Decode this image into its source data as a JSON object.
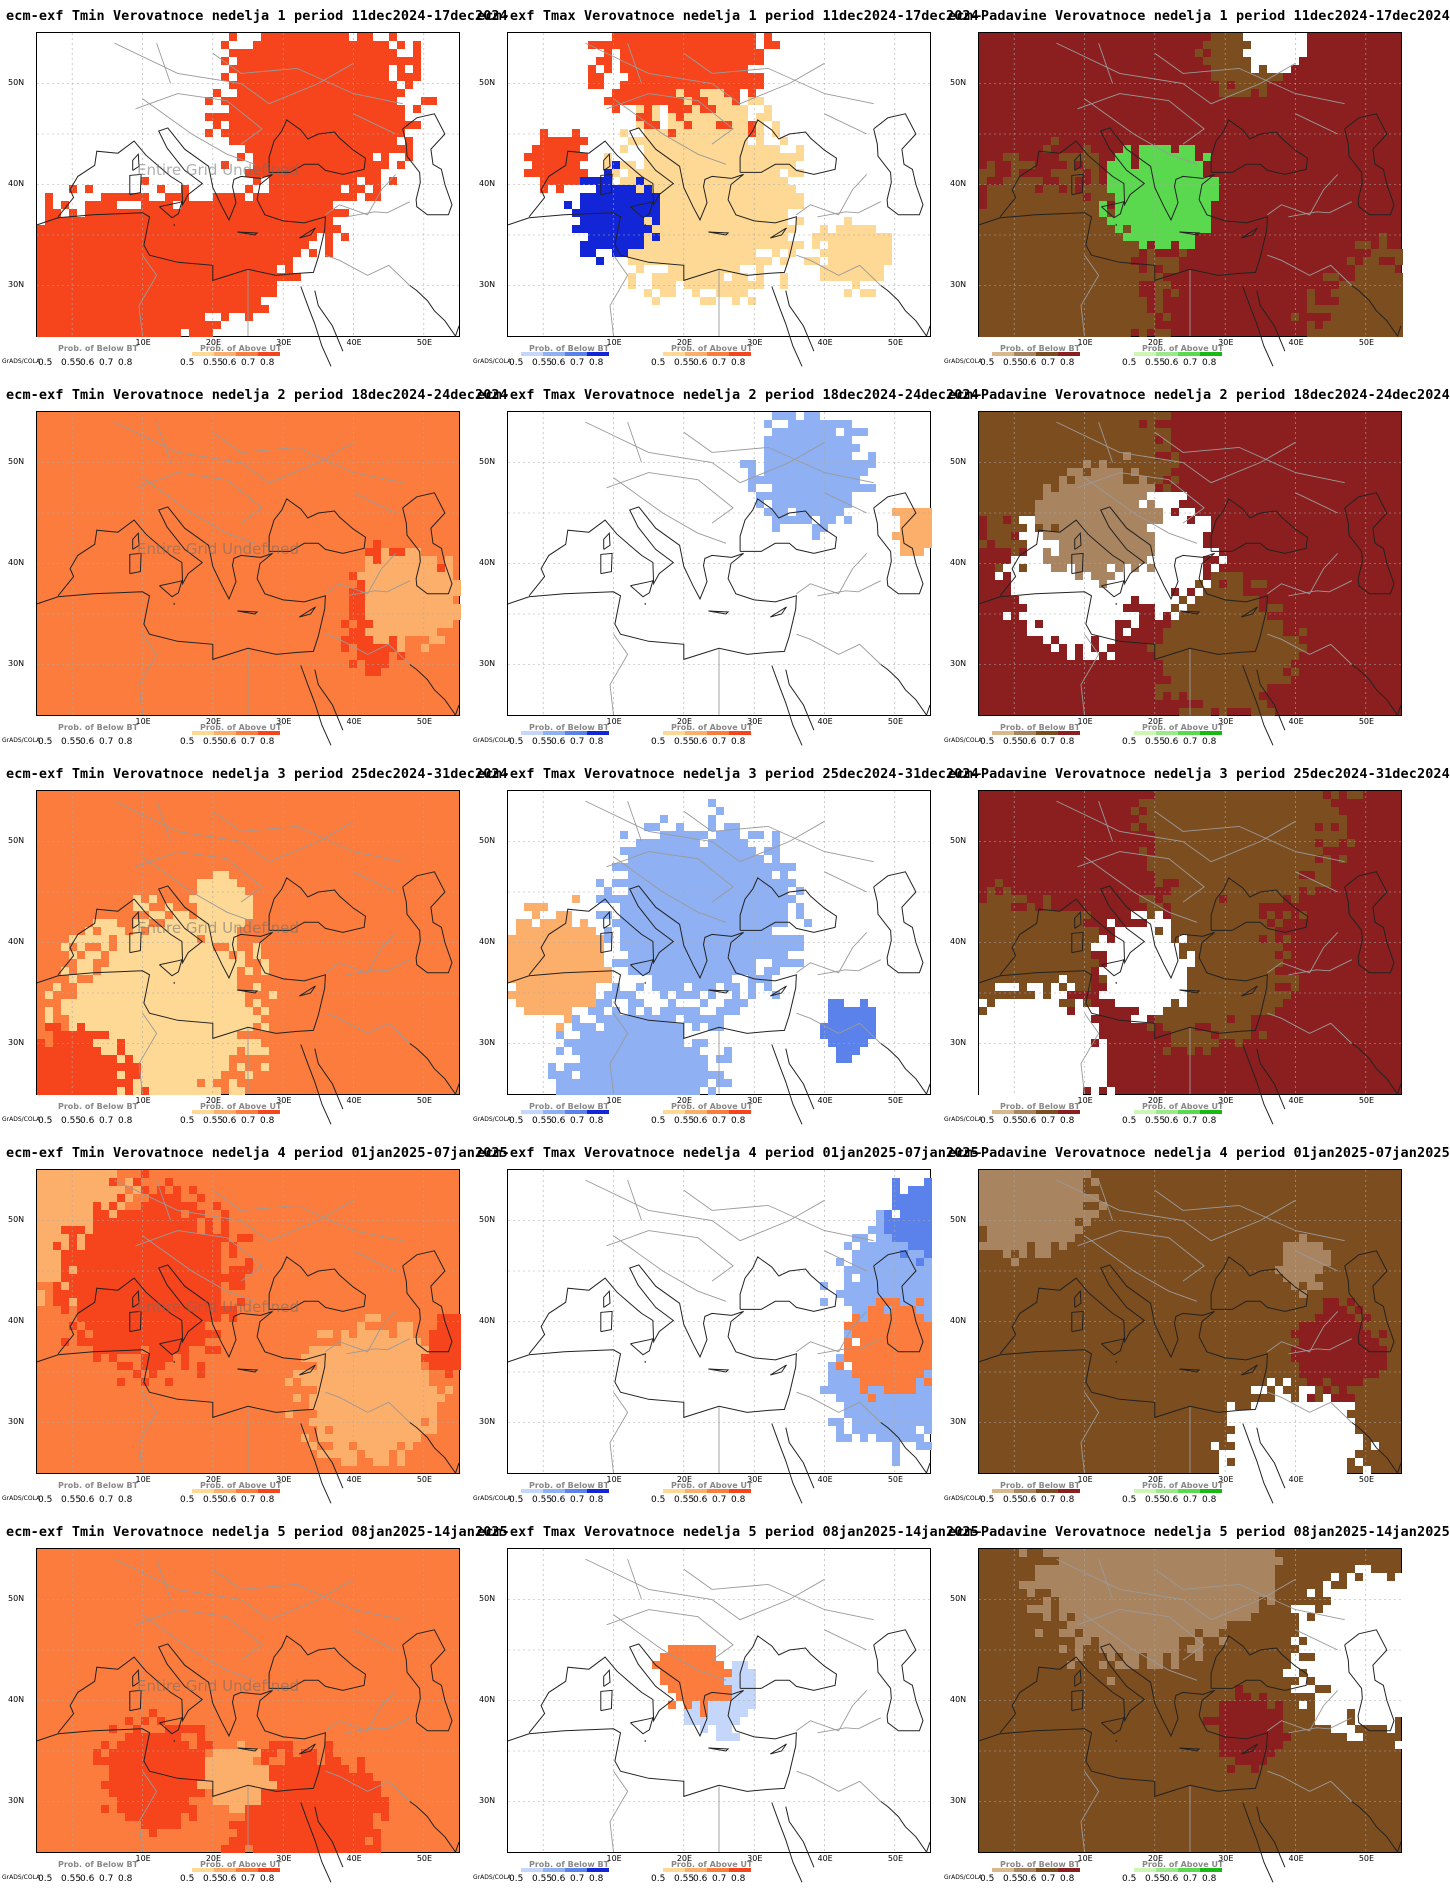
{
  "legends": {
    "tmin": {
      "below": {
        "title": "Prob. of Below BT",
        "colors": [
          "#ffffff",
          "#ffffff",
          "#ffffff",
          "#ffffff"
        ]
      },
      "above": {
        "title": "Prob. of Above UT",
        "colors": [
          "#fdd995",
          "#fcae6b",
          "#fb7c3c",
          "#f6441c"
        ]
      }
    },
    "tmax": {
      "below": {
        "title": "Prob. of Below BT",
        "colors": [
          "#c4d6fa",
          "#8fb0f2",
          "#5a82ea",
          "#1226d8"
        ]
      },
      "above": {
        "title": "Prob. of Above UT",
        "colors": [
          "#fdd995",
          "#fcae6b",
          "#fb7c3c",
          "#f6441c"
        ]
      }
    },
    "padavine": {
      "below": {
        "title": "Prob. of Below BT",
        "colors": [
          "#d7b98d",
          "#a98460",
          "#7c4d1f",
          "#8b1f1f"
        ]
      },
      "above": {
        "title": "Prob. of Above UT",
        "colors": [
          "#cdf5b6",
          "#9be88a",
          "#5ad84e",
          "#19b913"
        ]
      }
    },
    "ticks": [
      "0.5",
      "0.55",
      "0.6",
      "0.7",
      "0.8"
    ]
  },
  "grads_label": "GrADS/COLA",
  "undefined_text": "Entire Grid Undefined",
  "lat_labels": [
    "50N",
    "40N",
    "30N"
  ],
  "lon_labels": [
    "10E",
    "20E",
    "30E",
    "40E",
    "50E"
  ],
  "map_extent": {
    "lon": [
      -5,
      55
    ],
    "lat": [
      25,
      55
    ]
  },
  "panels": [
    {
      "title": "ecm-exf Tmin Verovatnoce nedelja 1 period 11dec2024-17dec2024",
      "var": "tmin",
      "week": 1,
      "base": "#ffffff",
      "blobs": [
        [
          "#f6441c",
          0.55
        ],
        [
          "#ffffff",
          0.2
        ],
        [
          "#f6441c",
          0.5
        ]
      ]
    },
    {
      "title": "ecm-exf Tmax Verovatnoce nedelja 1 period 11dec2024-17dec2024",
      "var": "tmax",
      "week": 1,
      "base": "#ffffff",
      "blobs": [
        [
          "#f6441c",
          0.45
        ],
        [
          "#fdd995",
          0.2
        ],
        [
          "#1226d8",
          0.06
        ]
      ]
    },
    {
      "title": "ecm—Padavine Verovatnoce nedelja 1 period 11dec2024-17dec2024",
      "var": "padavine",
      "week": 1,
      "base": "#8b1f1f",
      "blobs": [
        [
          "#7c4d1f",
          0.35
        ],
        [
          "#5ad84e",
          0.08
        ],
        [
          "#ffffff",
          0.15
        ]
      ]
    },
    {
      "title": "ecm-exf Tmin Verovatnoce nedelja 2 period 18dec2024-24dec2024",
      "var": "tmin",
      "week": 2,
      "base": "#fb7c3c",
      "blobs": [
        [
          "#f6441c",
          0.25
        ],
        [
          "#fcae6b",
          0.15
        ]
      ]
    },
    {
      "title": "ecm-exf Tmax Verovatnoce nedelja 2 period 18dec2024-24dec2024",
      "var": "tmax",
      "week": 2,
      "base": "#ffffff",
      "blobs": [
        [
          "#8fb0f2",
          0.06
        ],
        [
          "#fcae6b",
          0.1
        ]
      ]
    },
    {
      "title": "ecm—Padavine Verovatnoce nedelja 2 period 18dec2024-24dec2024",
      "var": "padavine",
      "week": 2,
      "base": "#8b1f1f",
      "blobs": [
        [
          "#7c4d1f",
          0.4
        ],
        [
          "#ffffff",
          0.25
        ],
        [
          "#a98460",
          0.15
        ]
      ]
    },
    {
      "title": "ecm-exf Tmin Verovatnoce nedelja 3 period 25dec2024-31dec2024",
      "var": "tmin",
      "week": 3,
      "base": "#fb7c3c",
      "blobs": [
        [
          "#fdd995",
          0.3
        ],
        [
          "#f6441c",
          0.15
        ]
      ]
    },
    {
      "title": "ecm-exf Tmax Verovatnoce nedelja 3 period 25dec2024-31dec2024",
      "var": "tmax",
      "week": 3,
      "base": "#ffffff",
      "blobs": [
        [
          "#8fb0f2",
          0.3
        ],
        [
          "#5a82ea",
          0.12
        ],
        [
          "#fcae6b",
          0.06
        ]
      ]
    },
    {
      "title": "ecm—Padavine Verovatnoce nedelja 3 period 25dec2024-31dec2024",
      "var": "padavine",
      "week": 3,
      "base": "#8b1f1f",
      "blobs": [
        [
          "#7c4d1f",
          0.45
        ],
        [
          "#ffffff",
          0.2
        ]
      ]
    },
    {
      "title": "ecm-exf Tmin Verovatnoce nedelja 4 period 01jan2025-07jan2025",
      "var": "tmin",
      "week": 4,
      "base": "#fb7c3c",
      "blobs": [
        [
          "#fcae6b",
          0.2
        ],
        [
          "#f6441c",
          0.2
        ]
      ]
    },
    {
      "title": "ecm-exf Tmax Verovatnoce nedelja 4 period 01jan2025-07jan2025",
      "var": "tmax",
      "week": 4,
      "base": "#ffffff",
      "blobs": [
        [
          "#8fb0f2",
          0.3
        ],
        [
          "#5a82ea",
          0.15
        ],
        [
          "#fb7c3c",
          0.04
        ]
      ]
    },
    {
      "title": "ecm—Padavine Verovatnoce nedelja 4 period 01jan2025-07jan2025",
      "var": "padavine",
      "week": 4,
      "base": "#7c4d1f",
      "blobs": [
        [
          "#a98460",
          0.3
        ],
        [
          "#ffffff",
          0.15
        ],
        [
          "#8b1f1f",
          0.15
        ]
      ]
    },
    {
      "title": "ecm-exf Tmin Verovatnoce nedelja 5 period 08jan2025-14jan2025",
      "var": "tmin",
      "week": 5,
      "base": "#fb7c3c",
      "blobs": [
        [
          "#f6441c",
          0.25
        ],
        [
          "#fcae6b",
          0.1
        ]
      ]
    },
    {
      "title": "ecm-exf Tmax Verovatnoce nedelja 5 period 08jan2025-14jan2025",
      "var": "tmax",
      "week": 5,
      "base": "#ffffff",
      "blobs": [
        [
          "#c4d6fa",
          0.15
        ],
        [
          "#fb7c3c",
          0.04
        ]
      ]
    },
    {
      "title": "ecm—Padavine Verovatnoce nedelja 5 period 08jan2025-14jan2025",
      "var": "padavine",
      "week": 5,
      "base": "#7c4d1f",
      "blobs": [
        [
          "#a98460",
          0.3
        ],
        [
          "#ffffff",
          0.12
        ],
        [
          "#8b1f1f",
          0.15
        ]
      ]
    }
  ]
}
